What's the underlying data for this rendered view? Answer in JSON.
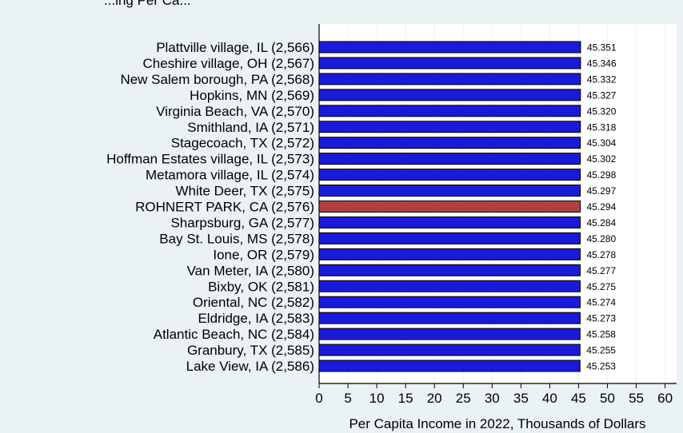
{
  "chart_data": {
    "type": "bar",
    "orientation": "horizontal",
    "title": "...ing Per Ca...",
    "xlabel": "Per Capita Income in 2022, Thousands of Dollars",
    "ylabel": "",
    "xlim": [
      0,
      62
    ],
    "xticks": [
      0,
      5,
      10,
      15,
      20,
      25,
      30,
      35,
      40,
      45,
      50,
      55,
      60
    ],
    "grid": true,
    "legend": "none",
    "colors": {
      "default": "#1a1adb",
      "highlight": "#b04040",
      "background_panel": "#eaf2f3",
      "plot_area": "#ffffff",
      "grid": "#eaf2f3"
    },
    "categories": [
      "Plattville village, IL (2,566)",
      "Cheshire village, OH (2,567)",
      "New Salem borough, PA (2,568)",
      "Hopkins, MN (2,569)",
      "Virginia Beach, VA (2,570)",
      "Smithland, IA (2,571)",
      "Stagecoach, TX (2,572)",
      "Hoffman Estates village, IL (2,573)",
      "Metamora village, IL (2,574)",
      "White Deer, TX (2,575)",
      "ROHNERT PARK, CA (2,576)",
      "Sharpsburg, GA (2,577)",
      "Bay St. Louis, MS (2,578)",
      "Ione, OR (2,579)",
      "Van Meter, IA (2,580)",
      "Bixby, OK (2,581)",
      "Oriental, NC (2,582)",
      "Eldridge, IA (2,583)",
      "Atlantic Beach, NC (2,584)",
      "Granbury, TX (2,585)",
      "Lake View, IA (2,586)"
    ],
    "values": [
      45.351,
      45.346,
      45.332,
      45.327,
      45.32,
      45.318,
      45.304,
      45.302,
      45.298,
      45.297,
      45.294,
      45.284,
      45.28,
      45.278,
      45.277,
      45.275,
      45.274,
      45.273,
      45.258,
      45.255,
      45.253
    ],
    "value_labels": [
      "45.351",
      "45.346",
      "45.332",
      "45.327",
      "45.320",
      "45.318",
      "45.304",
      "45.302",
      "45.298",
      "45.297",
      "45.294",
      "45.284",
      "45.280",
      "45.278",
      "45.277",
      "45.275",
      "45.274",
      "45.273",
      "45.258",
      "45.255",
      "45.253"
    ],
    "highlight_index": 10
  }
}
